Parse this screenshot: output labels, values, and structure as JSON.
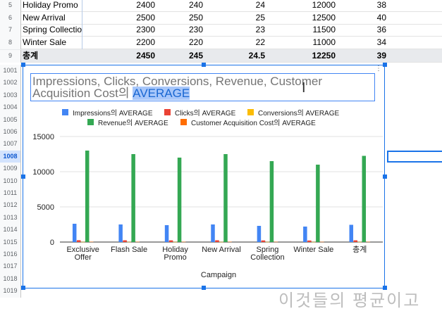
{
  "sheet": {
    "rows": [
      {
        "num": "5",
        "campaign": "Holiday Promo",
        "impressions": "2400",
        "clicks": "240",
        "conversions": "24",
        "revenue": "12000",
        "cac": "38"
      },
      {
        "num": "6",
        "campaign": "New Arrival",
        "impressions": "2500",
        "clicks": "250",
        "conversions": "25",
        "revenue": "12500",
        "cac": "40"
      },
      {
        "num": "7",
        "campaign": "Spring Collection",
        "impressions": "2300",
        "clicks": "230",
        "conversions": "23",
        "revenue": "11500",
        "cac": "36"
      },
      {
        "num": "8",
        "campaign": "Winter Sale",
        "impressions": "2200",
        "clicks": "220",
        "conversions": "22",
        "revenue": "11000",
        "cac": "34"
      }
    ],
    "total": {
      "num": "9",
      "campaign": "총계",
      "impressions": "2450",
      "clicks": "245",
      "conversions": "24.5",
      "revenue": "12250",
      "cac": "39"
    },
    "lower_rows": [
      "1001",
      "1002",
      "1003",
      "1004",
      "1005",
      "1006",
      "1007",
      "1008",
      "1009",
      "1010",
      "1011",
      "1012",
      "1013",
      "1014",
      "1015",
      "1016",
      "1017",
      "1018",
      "1019"
    ],
    "selected_row": "1008"
  },
  "chart_title": {
    "main": "Impressions, Clicks, Conversions, Revenue, Customer Acquisition Cost의 ",
    "highlight": "AVERAGE"
  },
  "legend": [
    {
      "label": "Impressions의 AVERAGE",
      "color": "#4285f4"
    },
    {
      "label": "Clicks의 AVERAGE",
      "color": "#ea4335"
    },
    {
      "label": "Conversions의 AVERAGE",
      "color": "#fbbc04"
    },
    {
      "label": "Revenue의 AVERAGE",
      "color": "#34a853"
    },
    {
      "label": "Customer Acquisition Cost의 AVERAGE",
      "color": "#ff6d01"
    }
  ],
  "chart_data": {
    "type": "bar",
    "categories": [
      "Exclusive Offer",
      "Flash Sale",
      "Holiday Promo",
      "New Arrival",
      "Spring Collection",
      "Winter Sale",
      "총계"
    ],
    "category_lines": [
      [
        "Exclusive",
        "Offer"
      ],
      [
        "Flash Sale"
      ],
      [
        "Holiday",
        "Promo"
      ],
      [
        "New Arrival"
      ],
      [
        "Spring",
        "Collection"
      ],
      [
        "Winter Sale"
      ],
      [
        "총계"
      ]
    ],
    "series": [
      {
        "name": "Impressions의 AVERAGE",
        "values": [
          2600,
          2500,
          2400,
          2500,
          2300,
          2200,
          2450
        ]
      },
      {
        "name": "Clicks의 AVERAGE",
        "values": [
          260,
          250,
          240,
          250,
          230,
          220,
          245
        ]
      },
      {
        "name": "Conversions의 AVERAGE",
        "values": [
          26,
          25,
          24,
          25,
          23,
          22,
          24.5
        ]
      },
      {
        "name": "Revenue의 AVERAGE",
        "values": [
          13000,
          12500,
          12000,
          12500,
          11500,
          11000,
          12250
        ]
      },
      {
        "name": "Customer Acquisition Cost의 AVERAGE",
        "values": [
          42,
          40,
          38,
          40,
          36,
          34,
          39
        ]
      }
    ],
    "yticks": [
      "0",
      "5000",
      "10000",
      "15000"
    ],
    "ylim": [
      0,
      15000
    ],
    "xlabel": "Campaign",
    "ylabel": ""
  },
  "overlay_text": "이것들의 평균이고"
}
